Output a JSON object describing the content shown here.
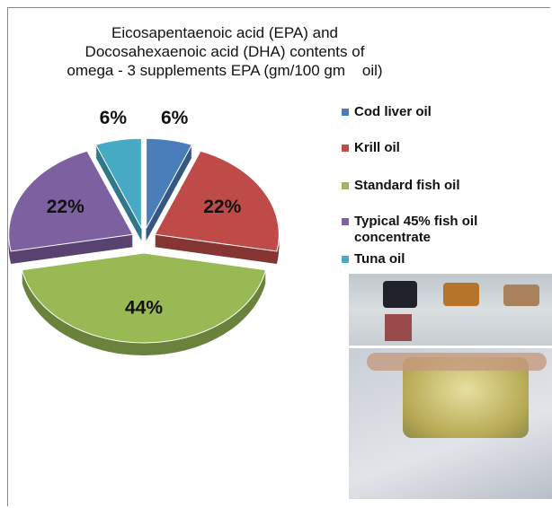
{
  "chart_data": {
    "type": "pie",
    "title": [
      "Eicosapentaenoic acid (EPA) and",
      "Docosahexaenoic acid (DHA) contents of",
      "omega - 3 supplements EPA (gm/100 gm    oil)"
    ],
    "categories": [
      "Cod liver oil",
      "Krill oil",
      "Standard fish oil",
      "Typical 45% fish oil concentrate",
      "Tuna oil"
    ],
    "values": [
      6,
      22,
      44,
      22,
      6
    ],
    "value_labels": [
      "6%",
      "22%",
      "44%",
      "22%",
      "6%"
    ],
    "colors": [
      "#4a7ebb",
      "#be4b48",
      "#98b954",
      "#7d60a0",
      "#46aac5"
    ],
    "legend": "right"
  }
}
